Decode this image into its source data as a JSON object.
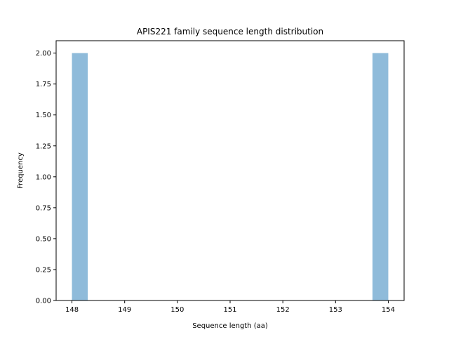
{
  "chart_data": {
    "type": "bar",
    "title": "APIS221 family sequence length distribution",
    "xlabel": "Sequence length (aa)",
    "ylabel": "Frequency",
    "xlim": [
      147.7,
      154.3
    ],
    "ylim": [
      0,
      2.1
    ],
    "xticks": [
      148,
      149,
      150,
      151,
      152,
      153,
      154
    ],
    "xtick_labels": [
      "148",
      "149",
      "150",
      "151",
      "152",
      "153",
      "154"
    ],
    "yticks": [
      0,
      0.25,
      0.5,
      0.75,
      1.0,
      1.25,
      1.5,
      1.75,
      2.0
    ],
    "ytick_labels": [
      "0.00",
      "0.25",
      "0.50",
      "0.75",
      "1.00",
      "1.25",
      "1.50",
      "1.75",
      "2.00"
    ],
    "bins": [
      {
        "start": 148.0,
        "end": 148.3,
        "value": 2
      },
      {
        "start": 153.7,
        "end": 154.0,
        "value": 2
      }
    ],
    "bar_color": "#8fbbda",
    "grid": false,
    "legend": "none"
  }
}
